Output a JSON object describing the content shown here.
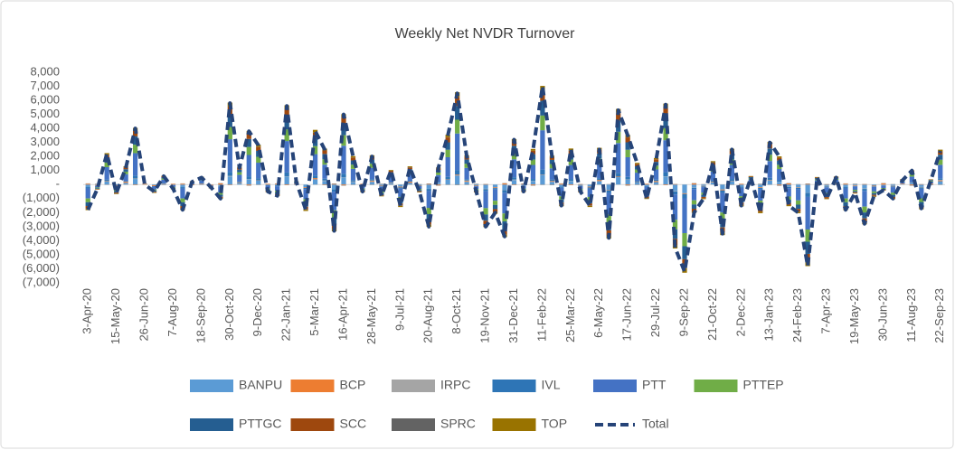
{
  "chart_data": {
    "type": "bar",
    "stacked": true,
    "title": "Weekly Net NVDR Turnover",
    "categories": [
      "3-Apr-20",
      null,
      null,
      "15-May-20",
      null,
      null,
      "26-Jun-20",
      null,
      null,
      "7-Aug-20",
      null,
      null,
      "18-Sep-20",
      null,
      null,
      "30-Oct-20",
      null,
      null,
      "9-Dec-20",
      null,
      null,
      "22-Jan-21",
      null,
      null,
      "5-Mar-21",
      null,
      null,
      "16-Apr-21",
      null,
      null,
      "28-May-21",
      null,
      null,
      "9-Jul-21",
      null,
      null,
      "20-Aug-21",
      null,
      null,
      "8-Oct-21",
      null,
      null,
      "19-Nov-21",
      null,
      null,
      "31-Dec-21",
      null,
      null,
      "11-Feb-22",
      null,
      null,
      "25-Mar-22",
      null,
      null,
      "6-May-22",
      null,
      null,
      "17-Jun-22",
      null,
      null,
      "29-Jul-22",
      null,
      null,
      "9-Sep-22",
      null,
      null,
      "21-Oct-22",
      null,
      null,
      "2-Dec-22",
      null,
      null,
      "13-Jan-23",
      null,
      null,
      "24-Feb-23",
      null,
      null,
      "7-Apr-23",
      null,
      null,
      "19-May-23",
      null,
      null,
      "30-Jun-23",
      null,
      null,
      "11-Aug-23",
      null,
      null,
      "22-Sep-23"
    ],
    "ylim": [
      -7000,
      8000
    ],
    "yticks": [
      {
        "value": -7000,
        "label": "(7,000)"
      },
      {
        "value": -6000,
        "label": "(6,000)"
      },
      {
        "value": -5000,
        "label": "(5,000)"
      },
      {
        "value": -4000,
        "label": "(4,000)"
      },
      {
        "value": -3000,
        "label": "(3,000)"
      },
      {
        "value": -2000,
        "label": "(2,000)"
      },
      {
        "value": -1000,
        "label": "(1,000)"
      },
      {
        "value": 0,
        "label": "-"
      },
      {
        "value": 1000,
        "label": "1,000"
      },
      {
        "value": 2000,
        "label": "2,000"
      },
      {
        "value": 3000,
        "label": "3,000"
      },
      {
        "value": 4000,
        "label": "4,000"
      },
      {
        "value": 5000,
        "label": "5,000"
      },
      {
        "value": 6000,
        "label": "6,000"
      },
      {
        "value": 7000,
        "label": "7,000"
      },
      {
        "value": 8000,
        "label": "8,000"
      }
    ],
    "grid": false,
    "legend": "bottom",
    "series": [
      {
        "name": "BANPU",
        "color": "#5b9bd5",
        "values": [
          -180,
          -30,
          220,
          -60,
          120,
          400,
          0,
          -50,
          60,
          -30,
          -180,
          20,
          50,
          -20,
          -100,
          580,
          120,
          380,
          280,
          -50,
          -80,
          560,
          20,
          -180,
          380,
          250,
          -330,
          500,
          200,
          -50,
          200,
          -80,
          100,
          -150,
          120,
          -50,
          -300,
          120,
          350,
          650,
          200,
          -50,
          -300,
          -200,
          -370,
          320,
          -50,
          250,
          700,
          200,
          -150,
          250,
          -50,
          -150,
          250,
          -380,
          530,
          350,
          150,
          -100,
          180,
          570,
          -450,
          -620,
          -200,
          -100,
          160,
          -350,
          250,
          -150,
          50,
          -200,
          300,
          200,
          -150,
          -200,
          -580,
          50,
          -100,
          50,
          -180,
          -60,
          -280,
          -80,
          -40,
          -100,
          30,
          100,
          -170,
          30,
          240
        ]
      },
      {
        "name": "BCP",
        "color": "#ed7d31",
        "values": [
          60,
          -40,
          30,
          -50,
          80,
          -30,
          40,
          -60,
          20,
          50,
          60,
          -40,
          30,
          -50,
          80,
          -30,
          40,
          -60,
          20,
          50,
          60,
          -40,
          30,
          -50,
          80,
          -30,
          40,
          -60,
          20,
          50,
          60,
          -40,
          30,
          -50,
          80,
          -30,
          40,
          -60,
          20,
          50,
          60,
          -40,
          30,
          -50,
          80,
          -30,
          40,
          -60,
          20,
          50,
          60,
          -40,
          30,
          -50,
          80,
          -30,
          40,
          -60,
          20,
          50,
          60,
          -40,
          30,
          -50,
          80,
          -30,
          40,
          -60,
          20,
          50,
          60,
          -40,
          30,
          -50,
          80,
          -30,
          40,
          -60,
          20,
          50,
          60,
          -40,
          30,
          -50,
          80,
          -30,
          40,
          -60,
          20,
          50,
          60
        ]
      },
      {
        "name": "IRPC",
        "color": "#a5a5a5",
        "values": [
          30,
          20,
          -30,
          10,
          -20,
          40,
          -10,
          20,
          -40,
          10,
          30,
          20,
          -30,
          10,
          -20,
          40,
          -10,
          20,
          -40,
          10,
          30,
          20,
          -30,
          10,
          -20,
          40,
          -10,
          20,
          -40,
          10,
          30,
          20,
          -30,
          10,
          -20,
          40,
          -10,
          20,
          -40,
          10,
          30,
          20,
          -30,
          10,
          -20,
          40,
          -10,
          20,
          -40,
          10,
          30,
          20,
          -30,
          10,
          -20,
          40,
          -10,
          20,
          -40,
          10,
          30,
          20,
          -30,
          10,
          -20,
          40,
          -10,
          20,
          -40,
          10,
          30,
          20,
          -30,
          10,
          -20,
          40,
          -10,
          20,
          -40,
          10,
          30,
          20,
          -30,
          10,
          -20,
          40,
          -10,
          20,
          -40,
          10,
          30
        ]
      },
      {
        "name": "IVL",
        "color": "#2e75b6",
        "values": [
          -90,
          -20,
          110,
          -30,
          60,
          200,
          0,
          -30,
          30,
          -20,
          -90,
          10,
          30,
          -10,
          -50,
          290,
          60,
          190,
          140,
          -30,
          -40,
          280,
          10,
          -90,
          190,
          130,
          -170,
          250,
          100,
          -30,
          100,
          -40,
          50,
          -80,
          60,
          -30,
          -150,
          60,
          180,
          330,
          100,
          -30,
          -150,
          -100,
          -190,
          160,
          -30,
          130,
          350,
          100,
          -80,
          130,
          -30,
          -80,
          130,
          -190,
          270,
          180,
          80,
          -50,
          90,
          290,
          -230,
          -310,
          -100,
          -50,
          80,
          -180,
          130,
          -80,
          30,
          -100,
          150,
          100,
          -80,
          -100,
          -290,
          30,
          -50,
          30,
          -90,
          -30,
          -140,
          -40,
          -20,
          -50,
          20,
          50,
          -90,
          20,
          120
        ]
      },
      {
        "name": "PTT",
        "color": "#4472c4",
        "values": [
          -720,
          -120,
          880,
          -240,
          480,
          1600,
          0,
          -200,
          240,
          -120,
          -720,
          80,
          200,
          -80,
          -400,
          2320,
          480,
          1520,
          1120,
          -200,
          -320,
          2240,
          80,
          -720,
          1520,
          1000,
          -1320,
          2000,
          800,
          -200,
          800,
          -320,
          400,
          -600,
          480,
          -200,
          -1200,
          480,
          1400,
          2600,
          800,
          -200,
          -1200,
          -800,
          -1480,
          1280,
          -200,
          1000,
          2800,
          800,
          -600,
          1000,
          -200,
          -600,
          1000,
          -1520,
          2120,
          1400,
          600,
          -400,
          720,
          2280,
          -1800,
          -2480,
          -800,
          -400,
          640,
          -1400,
          1000,
          -600,
          200,
          -800,
          1200,
          800,
          -600,
          -800,
          -2320,
          200,
          -400,
          200,
          -720,
          -240,
          -1120,
          -320,
          -160,
          -400,
          120,
          400,
          -680,
          120,
          960
        ]
      },
      {
        "name": "PTTEP",
        "color": "#70ad47",
        "values": [
          -270,
          -50,
          330,
          -90,
          180,
          600,
          0,
          -80,
          90,
          -50,
          -270,
          30,
          80,
          -30,
          -150,
          870,
          180,
          570,
          420,
          -80,
          -120,
          840,
          30,
          -270,
          570,
          380,
          -500,
          750,
          300,
          -80,
          300,
          -120,
          150,
          -230,
          180,
          -80,
          -450,
          180,
          530,
          980,
          300,
          -80,
          -450,
          -300,
          -560,
          480,
          -80,
          380,
          1050,
          300,
          -230,
          380,
          -80,
          -230,
          380,
          -570,
          800,
          530,
          230,
          -150,
          270,
          860,
          -680,
          -930,
          -300,
          -150,
          240,
          -530,
          380,
          -230,
          80,
          -300,
          450,
          300,
          -230,
          -300,
          -870,
          80,
          -150,
          80,
          -270,
          -90,
          -420,
          -120,
          -60,
          -150,
          50,
          150,
          -260,
          50,
          360
        ]
      },
      {
        "name": "PTTGC",
        "color": "#255e91",
        "values": [
          -270,
          -50,
          330,
          -90,
          180,
          600,
          0,
          -80,
          90,
          -50,
          -270,
          30,
          80,
          -30,
          -150,
          870,
          180,
          570,
          420,
          -80,
          -120,
          840,
          30,
          -270,
          570,
          380,
          -500,
          750,
          300,
          -80,
          300,
          -120,
          150,
          -230,
          180,
          -80,
          -450,
          180,
          530,
          980,
          300,
          -80,
          -450,
          -300,
          -560,
          480,
          -80,
          380,
          1050,
          300,
          -230,
          380,
          -80,
          -230,
          380,
          -570,
          800,
          530,
          230,
          -150,
          270,
          860,
          -680,
          -930,
          -300,
          -150,
          240,
          -530,
          380,
          -230,
          80,
          -300,
          450,
          300,
          -230,
          -300,
          -870,
          80,
          -150,
          80,
          -270,
          -90,
          -420,
          -120,
          -60,
          -150,
          50,
          150,
          -260,
          50,
          360
        ]
      },
      {
        "name": "SCC",
        "color": "#9e480e",
        "values": [
          -180,
          -30,
          220,
          -60,
          120,
          400,
          0,
          -50,
          60,
          -30,
          -180,
          20,
          50,
          -20,
          -100,
          580,
          120,
          380,
          280,
          -50,
          -80,
          560,
          20,
          -180,
          380,
          250,
          -330,
          500,
          200,
          -50,
          200,
          -80,
          100,
          -150,
          120,
          -50,
          -300,
          120,
          350,
          650,
          200,
          -50,
          -300,
          -200,
          -370,
          320,
          -50,
          250,
          700,
          200,
          -150,
          250,
          -50,
          -150,
          250,
          -380,
          530,
          350,
          150,
          -100,
          180,
          570,
          -450,
          -620,
          -200,
          -100,
          160,
          -350,
          250,
          -150,
          50,
          -200,
          300,
          200,
          -150,
          -200,
          -580,
          50,
          -100,
          50,
          -180,
          -60,
          -280,
          -80,
          -40,
          -100,
          30,
          100,
          -170,
          30,
          240
        ]
      },
      {
        "name": "SPRC",
        "color": "#636363",
        "values": [
          -20,
          30,
          10,
          -30,
          20,
          -10,
          30,
          -20,
          10,
          -30,
          -20,
          30,
          10,
          -30,
          20,
          -10,
          30,
          -20,
          10,
          -30,
          -20,
          30,
          10,
          -30,
          20,
          -10,
          30,
          -20,
          10,
          -30,
          -20,
          30,
          10,
          -30,
          20,
          -10,
          30,
          -20,
          10,
          -30,
          -20,
          30,
          10,
          -30,
          20,
          -10,
          30,
          -20,
          10,
          -30,
          -20,
          30,
          10,
          -30,
          20,
          -10,
          30,
          -20,
          10,
          -30,
          -20,
          30,
          10,
          -30,
          20,
          -10,
          30,
          -20,
          10,
          -30,
          -20,
          30,
          10,
          -30,
          20,
          -10,
          30,
          -20,
          10,
          -30,
          -20,
          30,
          10,
          -30,
          20,
          -10,
          30,
          -20,
          10,
          -30,
          -20
        ]
      },
      {
        "name": "TOP",
        "color": "#997300",
        "values": [
          -90,
          -20,
          110,
          -30,
          60,
          200,
          0,
          -30,
          30,
          -20,
          -90,
          10,
          30,
          -10,
          -50,
          290,
          60,
          190,
          140,
          -30,
          -40,
          280,
          10,
          -90,
          190,
          130,
          -170,
          250,
          100,
          -30,
          100,
          -40,
          50,
          -80,
          60,
          -30,
          -150,
          60,
          180,
          330,
          100,
          -30,
          -150,
          -100,
          -190,
          160,
          -30,
          130,
          350,
          100,
          -80,
          130,
          -30,
          -80,
          130,
          -190,
          270,
          180,
          80,
          -50,
          90,
          290,
          -230,
          -310,
          -100,
          -50,
          80,
          -180,
          130,
          -80,
          30,
          -100,
          150,
          100,
          -80,
          -100,
          -290,
          30,
          -50,
          30,
          -90,
          -30,
          -140,
          -40,
          -20,
          -50,
          20,
          50,
          -90,
          20,
          120
        ]
      },
      {
        "name": "Total",
        "color": "#264478",
        "type": "line",
        "dashed": true,
        "values": [
          -1800,
          -300,
          2200,
          -600,
          1200,
          4000,
          0,
          -500,
          600,
          -300,
          -1800,
          200,
          500,
          -200,
          -1000,
          5800,
          1200,
          3800,
          2800,
          -500,
          -800,
          5600,
          200,
          -1800,
          3800,
          2500,
          -3300,
          5000,
          2000,
          -500,
          2000,
          -800,
          1000,
          -1500,
          1200,
          -500,
          -3000,
          1200,
          3500,
          6500,
          2000,
          -500,
          -3000,
          -2000,
          -3700,
          3200,
          -500,
          2500,
          7000,
          2000,
          -1500,
          2500,
          -500,
          -1500,
          2500,
          -3800,
          5300,
          3500,
          1500,
          -1000,
          1800,
          5700,
          -4500,
          -6200,
          -2000,
          -1000,
          1600,
          -3500,
          2500,
          -1500,
          500,
          -2000,
          3000,
          2000,
          -1500,
          -2000,
          -5800,
          500,
          -1000,
          500,
          -1800,
          -600,
          -2800,
          -800,
          -400,
          -1000,
          300,
          1000,
          -1700,
          300,
          2400
        ]
      }
    ]
  }
}
